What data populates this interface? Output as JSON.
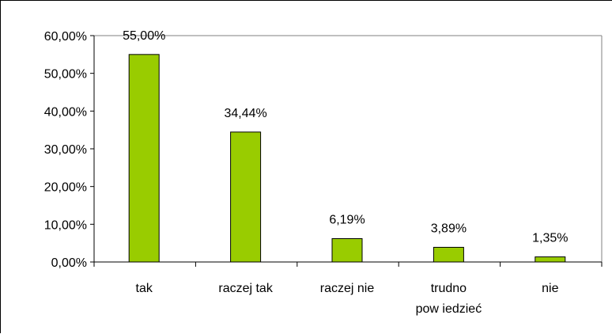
{
  "chart_data": {
    "type": "bar",
    "categories": [
      [
        "tak"
      ],
      [
        "raczej tak"
      ],
      [
        "raczej nie"
      ],
      [
        "trudno",
        "pow iedzieć"
      ],
      [
        "nie"
      ]
    ],
    "values": [
      55.0,
      34.44,
      6.19,
      3.89,
      1.35
    ],
    "value_labels": [
      "55,00%",
      "34,44%",
      "6,19%",
      "3,89%",
      "1,35%"
    ],
    "y_ticks": [
      {
        "value": 0,
        "label": "0,00%"
      },
      {
        "value": 10,
        "label": "10,00%"
      },
      {
        "value": 20,
        "label": "20,00%"
      },
      {
        "value": 30,
        "label": "30,00%"
      },
      {
        "value": 40,
        "label": "40,00%"
      },
      {
        "value": 50,
        "label": "50,00%"
      },
      {
        "value": 60,
        "label": "60,00%"
      }
    ],
    "ylim": [
      0,
      60
    ],
    "grid": false,
    "legend": "none",
    "title": "",
    "xlabel": "",
    "ylabel": "",
    "bar_color": "#99cc00",
    "bar_border_color": "#000000",
    "plot_border_color": "#808080"
  }
}
